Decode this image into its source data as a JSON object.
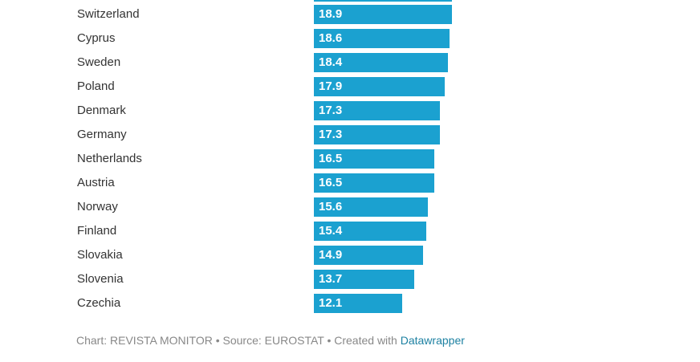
{
  "chart_data": {
    "type": "bar",
    "orientation": "horizontal",
    "categories": [
      "Switzerland",
      "Cyprus",
      "Sweden",
      "Poland",
      "Denmark",
      "Germany",
      "Netherlands",
      "Austria",
      "Norway",
      "Finland",
      "Slovakia",
      "Slovenia",
      "Czechia"
    ],
    "values": [
      18.9,
      18.6,
      18.4,
      17.9,
      17.3,
      17.3,
      16.5,
      16.5,
      15.6,
      15.4,
      14.9,
      13.7,
      12.1
    ],
    "partial_top_bar": true,
    "bar_color": "#1ba1d0",
    "xlim": [
      0,
      20
    ],
    "grid": false,
    "legend": "none"
  },
  "footer": {
    "prefix": "Chart: REVISTA MONITOR • Source: EUROSTAT • Created with ",
    "link": "Datawrapper"
  }
}
